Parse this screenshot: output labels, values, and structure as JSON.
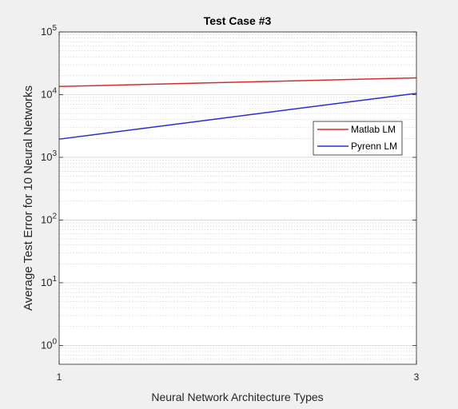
{
  "chart_data": {
    "type": "line",
    "title": "Test Case #3",
    "xlabel": "Neural Network Architecture Types",
    "ylabel": "Average Test Error for 10 Neural Networks",
    "x_ticks": [
      "1",
      "3"
    ],
    "xlim": [
      1,
      3
    ],
    "yscale": "log",
    "ylim": [
      0.5,
      100000
    ],
    "y_ticks": [
      {
        "value": 1,
        "base": "10",
        "exp": "0"
      },
      {
        "value": 10,
        "base": "10",
        "exp": "1"
      },
      {
        "value": 100,
        "base": "10",
        "exp": "2"
      },
      {
        "value": 1000,
        "base": "10",
        "exp": "3"
      },
      {
        "value": 10000,
        "base": "10",
        "exp": "4"
      },
      {
        "value": 100000,
        "base": "10",
        "exp": "5"
      }
    ],
    "grid": true,
    "minor_grid": true,
    "legend_position": "upper-right",
    "series": [
      {
        "name": "Matlab LM",
        "color": "#d62b2b",
        "x": [
          1,
          3
        ],
        "y": [
          13500,
          18500
        ]
      },
      {
        "name": "Pyrenn LM",
        "color": "#2b2bd6",
        "x": [
          1,
          3
        ],
        "y": [
          1950,
          10500
        ]
      }
    ]
  }
}
